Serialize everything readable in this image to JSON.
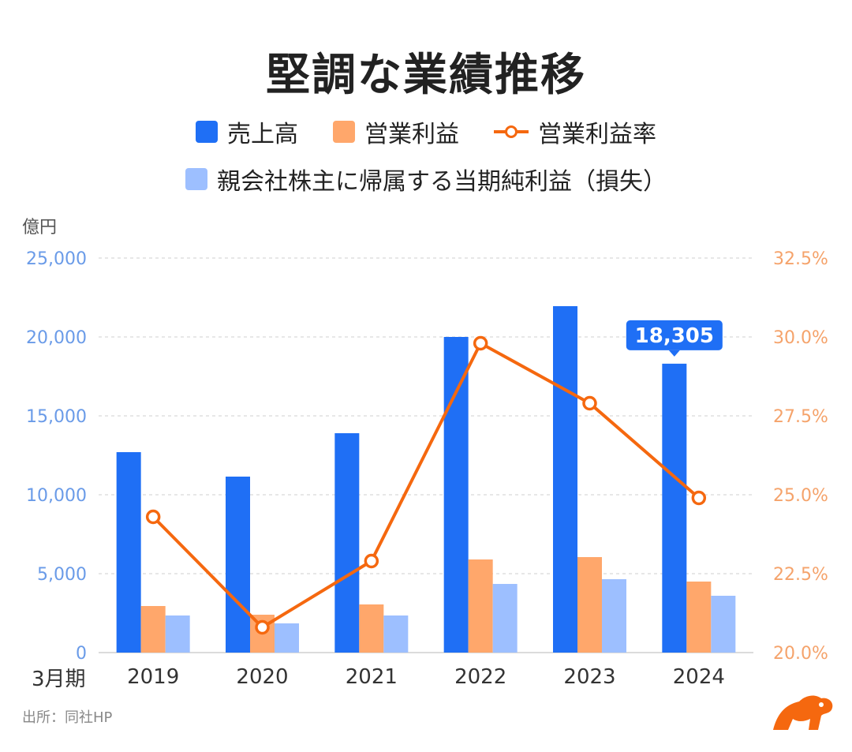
{
  "title": "堅調な業績推移",
  "legend": {
    "revenue": "売上高",
    "op_income": "営業利益",
    "op_margin": "営業利益率",
    "net_income": "親会社株主に帰属する当期純利益（損失）"
  },
  "unit_label": "億円",
  "x_prefix": "3月期",
  "source": "出所：同社HP",
  "colors": {
    "revenue": "#1f6ff5",
    "op_income": "#ffa76b",
    "net_income": "#9dbfff",
    "op_margin": "#f5680f",
    "left_axis": "#6a9be8",
    "right_axis": "#f5a36b",
    "callout": "#1f6ff5"
  },
  "chart_data": {
    "type": "bar",
    "categories": [
      "2019",
      "2020",
      "2021",
      "2022",
      "2023",
      "2024"
    ],
    "series": [
      {
        "name": "売上高",
        "type": "bar",
        "values": [
          12700,
          11150,
          13900,
          20000,
          21950,
          18305
        ]
      },
      {
        "name": "営業利益",
        "type": "bar",
        "values": [
          2950,
          2400,
          3050,
          5900,
          6050,
          4500
        ]
      },
      {
        "name": "親会社株主に帰属する当期純利益（損失）",
        "type": "bar",
        "values": [
          2350,
          1850,
          2350,
          4350,
          4650,
          3600
        ]
      },
      {
        "name": "営業利益率",
        "type": "line",
        "axis": "right",
        "values": [
          24.3,
          20.8,
          22.9,
          29.8,
          27.9,
          24.9
        ]
      }
    ],
    "y_left": {
      "ylim": [
        0,
        25000
      ],
      "ticks": [
        "0",
        "5,000",
        "10,000",
        "15,000",
        "20,000",
        "25,000"
      ],
      "tick_values": [
        0,
        5000,
        10000,
        15000,
        20000,
        25000
      ]
    },
    "y_right": {
      "ylim": [
        20.0,
        32.5
      ],
      "ticks": [
        "20.0%",
        "22.5%",
        "25.0%",
        "27.5%",
        "30.0%",
        "32.5%"
      ],
      "tick_values": [
        20.0,
        22.5,
        25.0,
        27.5,
        30.0,
        32.5
      ]
    },
    "annotation": {
      "category": "2024",
      "text": "18,305"
    },
    "grid": true
  }
}
